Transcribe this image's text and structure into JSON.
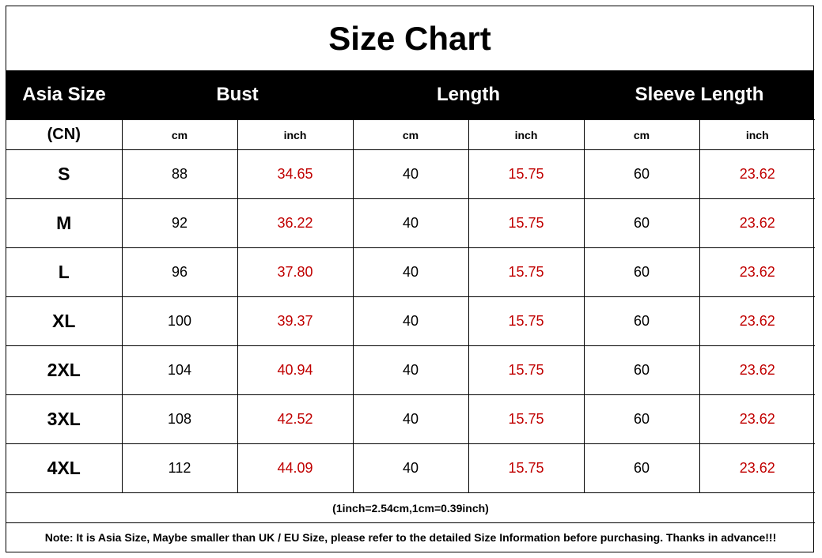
{
  "title": "Size Chart",
  "header": {
    "asia_size": "Asia Size",
    "bust": "Bust",
    "length": "Length",
    "sleeve_length": "Sleeve Length"
  },
  "units": [
    "(CN)",
    "cm",
    "inch",
    "cm",
    "inch",
    "cm",
    "inch"
  ],
  "rows": [
    {
      "size": "S",
      "bust_cm": "88",
      "bust_inch": "34.65",
      "length_cm": "40",
      "length_inch": "15.75",
      "sleeve_cm": "60",
      "sleeve_inch": "23.62"
    },
    {
      "size": "M",
      "bust_cm": "92",
      "bust_inch": "36.22",
      "length_cm": "40",
      "length_inch": "15.75",
      "sleeve_cm": "60",
      "sleeve_inch": "23.62"
    },
    {
      "size": "L",
      "bust_cm": "96",
      "bust_inch": "37.80",
      "length_cm": "40",
      "length_inch": "15.75",
      "sleeve_cm": "60",
      "sleeve_inch": "23.62"
    },
    {
      "size": "XL",
      "bust_cm": "100",
      "bust_inch": "39.37",
      "length_cm": "40",
      "length_inch": "15.75",
      "sleeve_cm": "60",
      "sleeve_inch": "23.62"
    },
    {
      "size": "2XL",
      "bust_cm": "104",
      "bust_inch": "40.94",
      "length_cm": "40",
      "length_inch": "15.75",
      "sleeve_cm": "60",
      "sleeve_inch": "23.62"
    },
    {
      "size": "3XL",
      "bust_cm": "108",
      "bust_inch": "42.52",
      "length_cm": "40",
      "length_inch": "15.75",
      "sleeve_cm": "60",
      "sleeve_inch": "23.62"
    },
    {
      "size": "4XL",
      "bust_cm": "112",
      "bust_inch": "44.09",
      "length_cm": "40",
      "length_inch": "15.75",
      "sleeve_cm": "60",
      "sleeve_inch": "23.62"
    }
  ],
  "conversion": "(1inch=2.54cm,1cm=0.39inch)",
  "note": "Note: It is Asia Size, Maybe smaller than UK / EU Size, please refer to the detailed Size Information before purchasing. Thanks in advance!!!",
  "colors": {
    "inch_value": "#c00000",
    "header_band": "#000000"
  }
}
